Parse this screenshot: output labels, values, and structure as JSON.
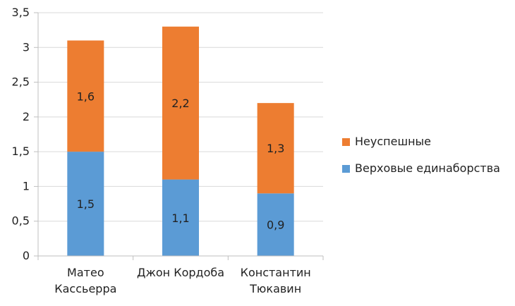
{
  "chart_data": {
    "type": "bar",
    "stacked": true,
    "categories": [
      [
        "Матео",
        "Кассьерра"
      ],
      [
        "Джон Кордоба"
      ],
      [
        "Константин",
        "Тюкавин"
      ]
    ],
    "series": [
      {
        "name": "Верховые единаборства",
        "values": [
          1.5,
          1.1,
          0.9
        ],
        "labels": [
          "1,5",
          "1,1",
          "0,9"
        ],
        "color": "#5b9bd5"
      },
      {
        "name": "Неуспешные",
        "values": [
          1.6,
          2.2,
          1.3
        ],
        "labels": [
          "1,6",
          "2,2",
          "1,3"
        ],
        "color": "#ed7d31"
      }
    ],
    "legend_order": [
      1,
      0
    ],
    "legend_position": "right",
    "ylim": [
      0,
      3.5
    ],
    "yticks": [
      0,
      0.5,
      1,
      1.5,
      2,
      2.5,
      3,
      3.5
    ],
    "ytick_labels": [
      "0",
      "0,5",
      "1",
      "1,5",
      "2",
      "2,5",
      "3",
      "3,5"
    ],
    "grid": true,
    "gridline_color": "#d9d9d9",
    "axis_color": "#bfbfbf"
  }
}
